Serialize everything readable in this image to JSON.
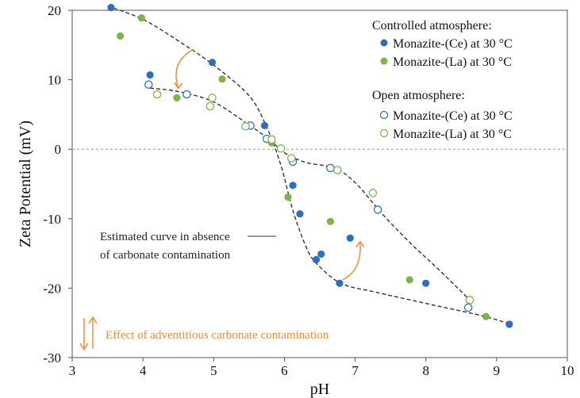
{
  "chart_data": {
    "type": "scatter",
    "xlabel": "pH",
    "ylabel": "Zeta Potential (mV)",
    "xlim": [
      3,
      10
    ],
    "ylim": [
      -30,
      20
    ],
    "xticks": [
      "3",
      "4",
      "5",
      "6",
      "7",
      "8",
      "9",
      "10"
    ],
    "yticks": [
      "20",
      "10",
      "0",
      "-10",
      "-20",
      "-30"
    ],
    "zero_line": true,
    "grid": false,
    "legend_position": "top-right",
    "legend_groups": [
      {
        "heading": "Controlled atmosphere:",
        "entries": [
          {
            "label": "Monazite-(Ce) at 30 °C",
            "series": 0
          },
          {
            "label": "Monazite-(La) at 30 °C",
            "series": 1
          }
        ]
      },
      {
        "heading": "Open atmosphere:",
        "entries": [
          {
            "label": "Monazite-(Ce) at 30 °C",
            "series": 2
          },
          {
            "label": "Monazite-(La) at 30 °C",
            "series": 3
          }
        ]
      }
    ],
    "series": [
      {
        "color": "#2e6fbd",
        "marker": "filled-circle",
        "points": [
          [
            3.55,
            20.4
          ],
          [
            4.1,
            10.7
          ],
          [
            4.98,
            12.5
          ],
          [
            5.72,
            3.4
          ],
          [
            6.12,
            -5.2
          ],
          [
            6.22,
            -9.3
          ],
          [
            6.45,
            -15.9
          ],
          [
            6.52,
            -15.1
          ],
          [
            6.78,
            -19.3
          ],
          [
            6.93,
            -12.8
          ],
          [
            8.0,
            -19.3
          ],
          [
            9.18,
            -25.2
          ]
        ]
      },
      {
        "color": "#7db44a",
        "marker": "filled-circle",
        "points": [
          [
            3.68,
            16.3
          ],
          [
            3.98,
            18.9
          ],
          [
            4.48,
            7.4
          ],
          [
            5.12,
            10.1
          ],
          [
            5.82,
            0.9
          ],
          [
            6.05,
            -6.9
          ],
          [
            6.65,
            -10.4
          ],
          [
            7.77,
            -18.8
          ],
          [
            8.85,
            -24.1
          ]
        ]
      },
      {
        "color": "#2e6fbd",
        "marker": "open-circle",
        "points": [
          [
            4.08,
            9.3
          ],
          [
            4.62,
            7.9
          ],
          [
            5.52,
            3.4
          ],
          [
            5.75,
            1.5
          ],
          [
            6.12,
            -1.8
          ],
          [
            6.65,
            -2.7
          ],
          [
            7.32,
            -8.7
          ],
          [
            8.6,
            -22.8
          ]
        ]
      },
      {
        "color": "#7db44a",
        "marker": "open-circle",
        "points": [
          [
            4.2,
            7.9
          ],
          [
            4.98,
            7.4
          ],
          [
            4.95,
            6.2
          ],
          [
            5.45,
            3.3
          ],
          [
            5.82,
            1.4
          ],
          [
            5.95,
            0.1
          ],
          [
            6.1,
            -1.3
          ],
          [
            6.75,
            -3.0
          ],
          [
            7.25,
            -6.3
          ],
          [
            8.62,
            -21.7
          ]
        ]
      }
    ],
    "fitted_curves": [
      {
        "name": "upper",
        "color": "#333333",
        "points": [
          [
            3.5,
            20.6
          ],
          [
            4.0,
            18.7
          ],
          [
            4.5,
            15.6
          ],
          [
            5.0,
            12.1
          ],
          [
            5.5,
            7.7
          ],
          [
            5.75,
            3.2
          ],
          [
            5.95,
            -2.3
          ],
          [
            6.12,
            -8.8
          ],
          [
            6.3,
            -13.9
          ],
          [
            6.45,
            -16.4
          ],
          [
            6.8,
            -19.3
          ],
          [
            7.3,
            -20.6
          ],
          [
            8.0,
            -22.2
          ],
          [
            8.8,
            -24.0
          ],
          [
            9.2,
            -25.2
          ]
        ]
      },
      {
        "name": "lower",
        "color": "#333333",
        "points": [
          [
            4.1,
            8.8
          ],
          [
            4.5,
            8.3
          ],
          [
            5.0,
            6.8
          ],
          [
            5.5,
            3.5
          ],
          [
            5.8,
            1.3
          ],
          [
            6.0,
            -0.5
          ],
          [
            6.3,
            -1.9
          ],
          [
            6.7,
            -2.7
          ],
          [
            7.0,
            -4.8
          ],
          [
            7.4,
            -9.5
          ],
          [
            7.8,
            -13.7
          ],
          [
            8.2,
            -17.5
          ],
          [
            8.6,
            -21.5
          ]
        ]
      }
    ],
    "annotations": [
      {
        "text": "Estimated curve in absence",
        "color": "#222222"
      },
      {
        "text": "of carbonate contamination",
        "color": "#222222"
      },
      {
        "text": "Effect of adventitious carbonate contamination",
        "color": "#f08c3c"
      }
    ],
    "arrow_color": "#f08c3c"
  }
}
